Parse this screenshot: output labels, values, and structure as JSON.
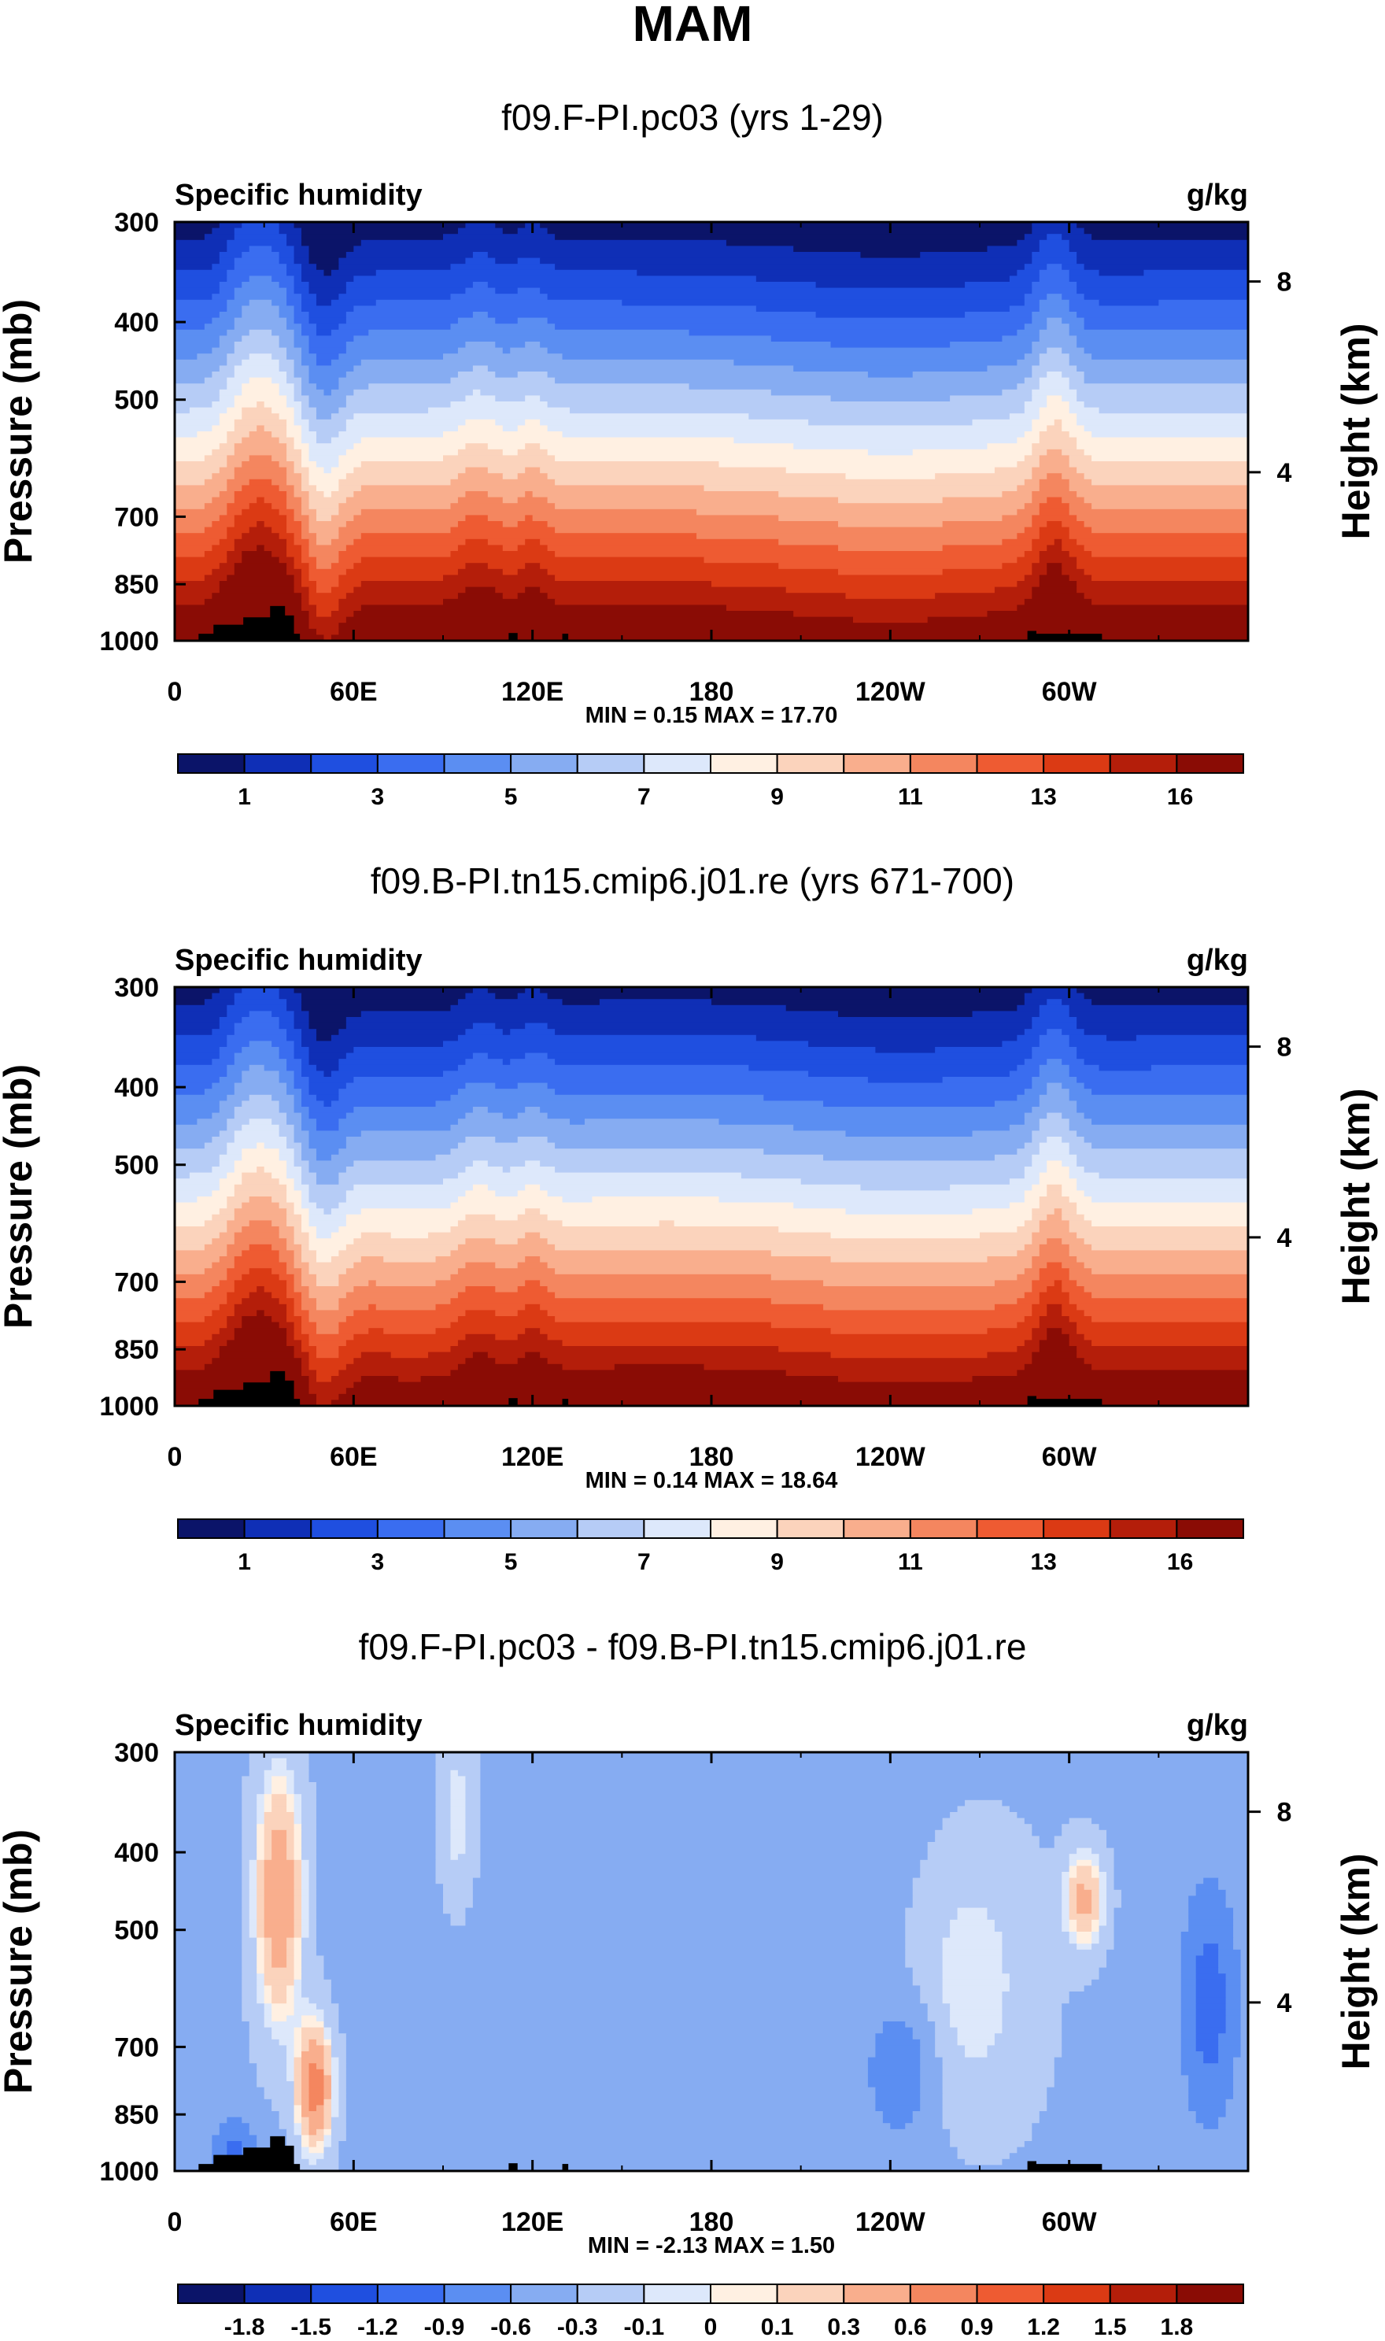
{
  "figure": {
    "title": "MAM",
    "colors": {
      "abs_palette": [
        "#0b1469",
        "#0f2fb6",
        "#1f4fe0",
        "#3a6df0",
        "#5b8ef2",
        "#86acf2",
        "#b6ccf6",
        "#dde8fb",
        "#fff0e2",
        "#fbd3bc",
        "#f9ae8d",
        "#f4865f",
        "#ee5b32",
        "#db3a14",
        "#b41e0a",
        "#8a0c05"
      ],
      "diff_palette": [
        "#0b1469",
        "#0f2fb6",
        "#1f4fe0",
        "#3a6df0",
        "#5b8ef2",
        "#86acf2",
        "#b6ccf6",
        "#dde8fb",
        "#fff0e2",
        "#fbd3bc",
        "#f9ae8d",
        "#f4865f",
        "#ee5b32",
        "#db3a14",
        "#b41e0a",
        "#8a0c05"
      ],
      "terrain": "#000000"
    }
  },
  "chart_data": [
    {
      "type": "heatmap",
      "title": "f09.F-PI.pc03 (yrs 1-29)",
      "variable_label": "Specific humidity",
      "units": "g/kg",
      "ylabel": "Pressure (mb)",
      "y2label": "Height (km)",
      "xticks": [
        "0",
        "60E",
        "120E",
        "180",
        "120W",
        "60W"
      ],
      "xlim": [
        0,
        360
      ],
      "yticks": [
        "300",
        "400",
        "500",
        "700",
        "850",
        "1000"
      ],
      "y2ticks": [
        "8",
        "4"
      ],
      "ylim": [
        1000,
        300
      ],
      "stats": "MIN =   0.15  MAX =  17.70",
      "min": 0.15,
      "max": 17.7,
      "colorbar_labels": [
        "1",
        "3",
        "5",
        "7",
        "9",
        "11",
        "13",
        "16"
      ],
      "colorbar_bins": 16
    },
    {
      "type": "heatmap",
      "title": "f09.B-PI.tn15.cmip6.j01.re (yrs 671-700)",
      "variable_label": "Specific humidity",
      "units": "g/kg",
      "ylabel": "Pressure (mb)",
      "y2label": "Height (km)",
      "xticks": [
        "0",
        "60E",
        "120E",
        "180",
        "120W",
        "60W"
      ],
      "xlim": [
        0,
        360
      ],
      "yticks": [
        "300",
        "400",
        "500",
        "700",
        "850",
        "1000"
      ],
      "y2ticks": [
        "8",
        "4"
      ],
      "ylim": [
        1000,
        300
      ],
      "stats": "MIN =   0.14  MAX =  18.64",
      "min": 0.14,
      "max": 18.64,
      "colorbar_labels": [
        "1",
        "3",
        "5",
        "7",
        "9",
        "11",
        "13",
        "16"
      ],
      "colorbar_bins": 16
    },
    {
      "type": "heatmap",
      "title": "f09.F-PI.pc03 - f09.B-PI.tn15.cmip6.j01.re",
      "variable_label": "Specific humidity",
      "units": "g/kg",
      "ylabel": "Pressure (mb)",
      "y2label": "Height (km)",
      "xticks": [
        "0",
        "60E",
        "120E",
        "180",
        "120W",
        "60W"
      ],
      "xlim": [
        0,
        360
      ],
      "yticks": [
        "300",
        "400",
        "500",
        "700",
        "850",
        "1000"
      ],
      "y2ticks": [
        "8",
        "4"
      ],
      "ylim": [
        1000,
        300
      ],
      "stats": "MIN =  -2.13  MAX =   1.50",
      "min": -2.13,
      "max": 1.5,
      "colorbar_labels": [
        "-1.8",
        "-1.5",
        "-1.2",
        "-0.9",
        "-0.6",
        "-0.3",
        "-0.1",
        "0",
        "0.1",
        "0.3",
        "0.6",
        "0.9",
        "1.2",
        "1.5",
        "1.8"
      ],
      "colorbar_bins": 16
    }
  ]
}
